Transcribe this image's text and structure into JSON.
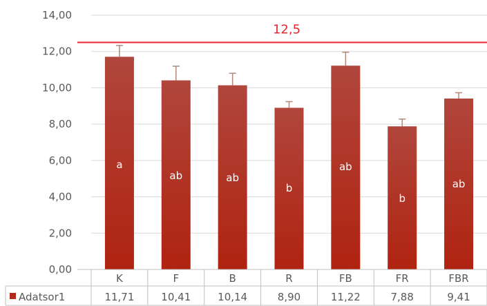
{
  "chart_data": {
    "type": "bar",
    "categories": [
      "K",
      "F",
      "B",
      "R",
      "FB",
      "FR",
      "FBR"
    ],
    "series": [
      {
        "name": "Adatsor1",
        "values": [
          11.71,
          10.41,
          10.14,
          8.9,
          11.22,
          7.88,
          9.41
        ],
        "value_labels": [
          "11,71",
          "10,41",
          "10,14",
          "8,90",
          "11,22",
          "7,88",
          "9,41"
        ],
        "error_plus": [
          0.62,
          0.78,
          0.66,
          0.34,
          0.74,
          0.4,
          0.32
        ],
        "letters": [
          "a",
          "ab",
          "ab",
          "b",
          "ab",
          "b",
          "ab"
        ],
        "color": "#b22a1c"
      }
    ],
    "y_ticks": [
      "0,00",
      "2,00",
      "4,00",
      "6,00",
      "8,00",
      "10,00",
      "12,00",
      "14,00"
    ],
    "ylim": [
      0,
      14
    ],
    "reference_line": {
      "value": 12.5,
      "label": "12,5",
      "color": "#e8262d"
    },
    "grid": true,
    "legend_placement": "data-table",
    "title": "",
    "xlabel": "",
    "ylabel": ""
  }
}
